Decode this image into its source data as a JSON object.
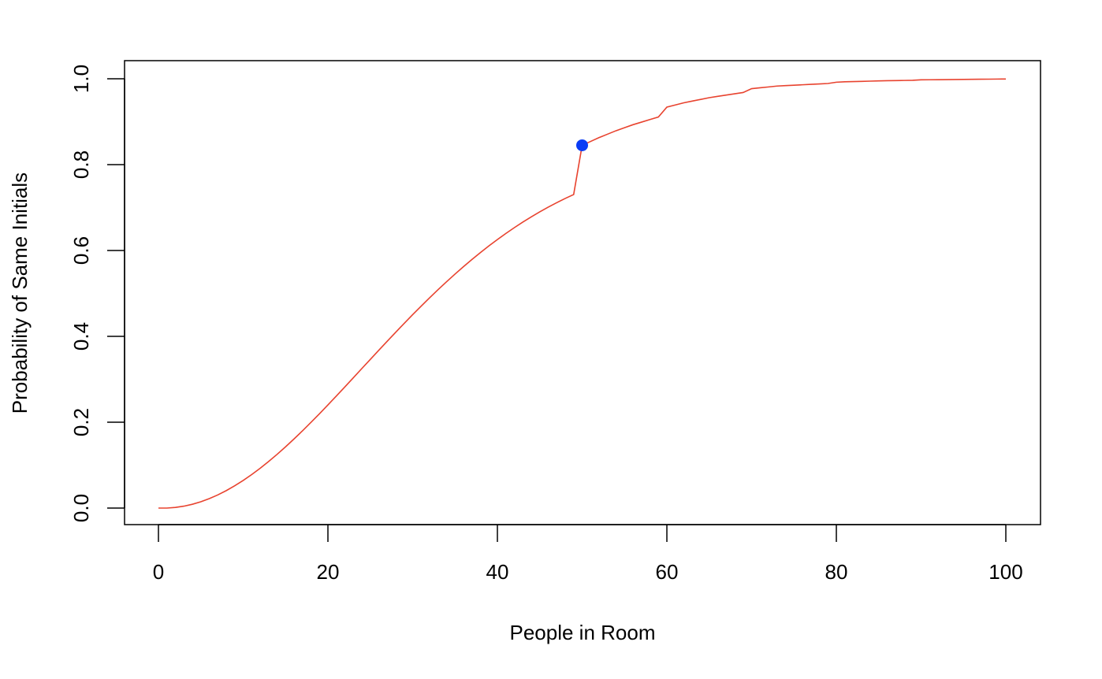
{
  "chart_data": {
    "type": "line",
    "xlabel": "People in Room",
    "ylabel": "Probability of Same Initials",
    "xlim": [
      0,
      100
    ],
    "ylim": [
      0,
      1
    ],
    "xticks": [
      "0",
      "20",
      "40",
      "60",
      "80",
      "100"
    ],
    "yticks": [
      "0.0",
      "0.2",
      "0.4",
      "0.6",
      "0.8",
      "1.0"
    ],
    "grid": false,
    "legend": "none",
    "line_color": "#e8432f",
    "point_color": "#0a3cf5",
    "series": [
      {
        "x": [
          0,
          1,
          2,
          3,
          4,
          5,
          6,
          7,
          8,
          9,
          10,
          11,
          12,
          13,
          14,
          15,
          16,
          17,
          18,
          19,
          20,
          21,
          22,
          23,
          24,
          25,
          26,
          27,
          28,
          29,
          30,
          31,
          32,
          33,
          34,
          35,
          36,
          37,
          38,
          39,
          40,
          41,
          42,
          43,
          44,
          45,
          46,
          47,
          48,
          49,
          50,
          51,
          52,
          53,
          54,
          55,
          56,
          57,
          58,
          59,
          60,
          61,
          62,
          63,
          64,
          65,
          66,
          67,
          68,
          69,
          70,
          71,
          72,
          73,
          74,
          75,
          76,
          77,
          78,
          79,
          80,
          81,
          82,
          83,
          84,
          85,
          86,
          87,
          88,
          89,
          90,
          91,
          92,
          93,
          94,
          95,
          96,
          97,
          98,
          99,
          100
        ],
        "values": [
          0,
          0,
          0.0015,
          0.0044,
          0.0088,
          0.0147,
          0.022,
          0.0306,
          0.0406,
          0.0519,
          0.0644,
          0.078,
          0.0927,
          0.1084,
          0.1251,
          0.1427,
          0.161,
          0.18,
          0.1996,
          0.2197,
          0.2403,
          0.2612,
          0.2823,
          0.3036,
          0.325,
          0.3463,
          0.3676,
          0.3887,
          0.4096,
          0.4302,
          0.4505,
          0.4704,
          0.4898,
          0.5088,
          0.5272,
          0.5451,
          0.5624,
          0.5791,
          0.5952,
          0.6107,
          0.6255,
          0.6397,
          0.6532,
          0.6661,
          0.6784,
          0.69,
          0.701,
          0.7114,
          0.7212,
          0.7304,
          0.845,
          0.854,
          0.863,
          0.871,
          0.879,
          0.886,
          0.893,
          0.899,
          0.905,
          0.911,
          0.934,
          0.939,
          0.944,
          0.948,
          0.952,
          0.956,
          0.959,
          0.962,
          0.965,
          0.968,
          0.977,
          0.979,
          0.981,
          0.983,
          0.984,
          0.985,
          0.986,
          0.987,
          0.988,
          0.989,
          0.992,
          0.993,
          0.9935,
          0.994,
          0.9945,
          0.995,
          0.9955,
          0.9958,
          0.9961,
          0.9964,
          0.9975,
          0.9977,
          0.9979,
          0.9981,
          0.9983,
          0.9985,
          0.9987,
          0.9989,
          0.9991,
          0.9993,
          0.9995
        ]
      }
    ],
    "highlight_point": {
      "x": 50,
      "y": 0.845
    }
  }
}
